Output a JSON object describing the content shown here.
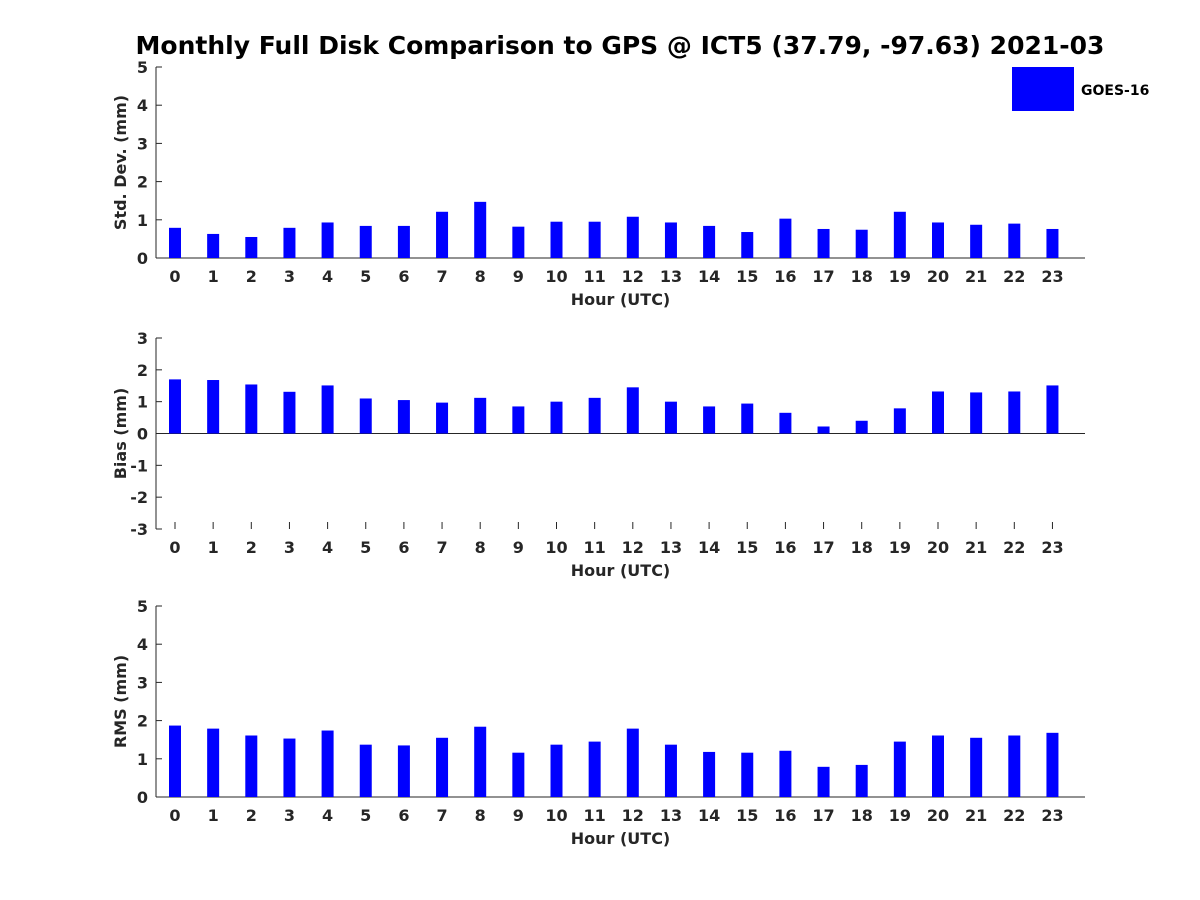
{
  "title": "Monthly Full Disk Comparison to GPS @ ICT5 (37.79, -97.63) 2021-03",
  "legend": {
    "label": "GOES-16",
    "color": "#0000ff",
    "placement": "top-right"
  },
  "chart_data": [
    {
      "type": "bar",
      "ylabel": "Std. Dev. (mm)",
      "xlabel": "Hour (UTC)",
      "ylim": [
        0,
        5
      ],
      "yticks": [
        0,
        1,
        2,
        3,
        4,
        5
      ],
      "categories": [
        "0",
        "1",
        "2",
        "3",
        "4",
        "5",
        "6",
        "7",
        "8",
        "9",
        "10",
        "11",
        "12",
        "13",
        "14",
        "15",
        "16",
        "17",
        "18",
        "19",
        "20",
        "21",
        "22",
        "23"
      ],
      "series": [
        {
          "name": "GOES-16",
          "color": "#0000ff",
          "values": [
            0.79,
            0.63,
            0.55,
            0.79,
            0.93,
            0.84,
            0.84,
            1.21,
            1.47,
            0.82,
            0.95,
            0.95,
            1.08,
            0.93,
            0.84,
            0.68,
            1.03,
            0.76,
            0.74,
            1.21,
            0.93,
            0.87,
            0.9,
            0.76
          ]
        }
      ],
      "grid": false
    },
    {
      "type": "bar",
      "ylabel": "Bias (mm)",
      "xlabel": "Hour (UTC)",
      "ylim": [
        -3,
        3
      ],
      "yticks": [
        -3,
        -2,
        -1,
        0,
        1,
        2,
        3
      ],
      "categories": [
        "0",
        "1",
        "2",
        "3",
        "4",
        "5",
        "6",
        "7",
        "8",
        "9",
        "10",
        "11",
        "12",
        "13",
        "14",
        "15",
        "16",
        "17",
        "18",
        "19",
        "20",
        "21",
        "22",
        "23"
      ],
      "series": [
        {
          "name": "GOES-16",
          "color": "#0000ff",
          "values": [
            1.7,
            1.68,
            1.54,
            1.31,
            1.51,
            1.1,
            1.05,
            0.97,
            1.12,
            0.85,
            1.0,
            1.12,
            1.45,
            1.0,
            0.85,
            0.94,
            0.65,
            0.22,
            0.4,
            0.79,
            1.32,
            1.29,
            1.32,
            1.51
          ]
        }
      ],
      "grid": false
    },
    {
      "type": "bar",
      "ylabel": "RMS (mm)",
      "xlabel": "Hour (UTC)",
      "ylim": [
        0,
        5
      ],
      "yticks": [
        0,
        1,
        2,
        3,
        4,
        5
      ],
      "categories": [
        "0",
        "1",
        "2",
        "3",
        "4",
        "5",
        "6",
        "7",
        "8",
        "9",
        "10",
        "11",
        "12",
        "13",
        "14",
        "15",
        "16",
        "17",
        "18",
        "19",
        "20",
        "21",
        "22",
        "23"
      ],
      "series": [
        {
          "name": "GOES-16",
          "color": "#0000ff",
          "values": [
            1.87,
            1.79,
            1.61,
            1.53,
            1.74,
            1.37,
            1.35,
            1.55,
            1.84,
            1.16,
            1.37,
            1.45,
            1.79,
            1.37,
            1.18,
            1.16,
            1.21,
            0.79,
            0.84,
            1.45,
            1.61,
            1.55,
            1.61,
            1.68
          ]
        }
      ],
      "grid": false
    }
  ]
}
